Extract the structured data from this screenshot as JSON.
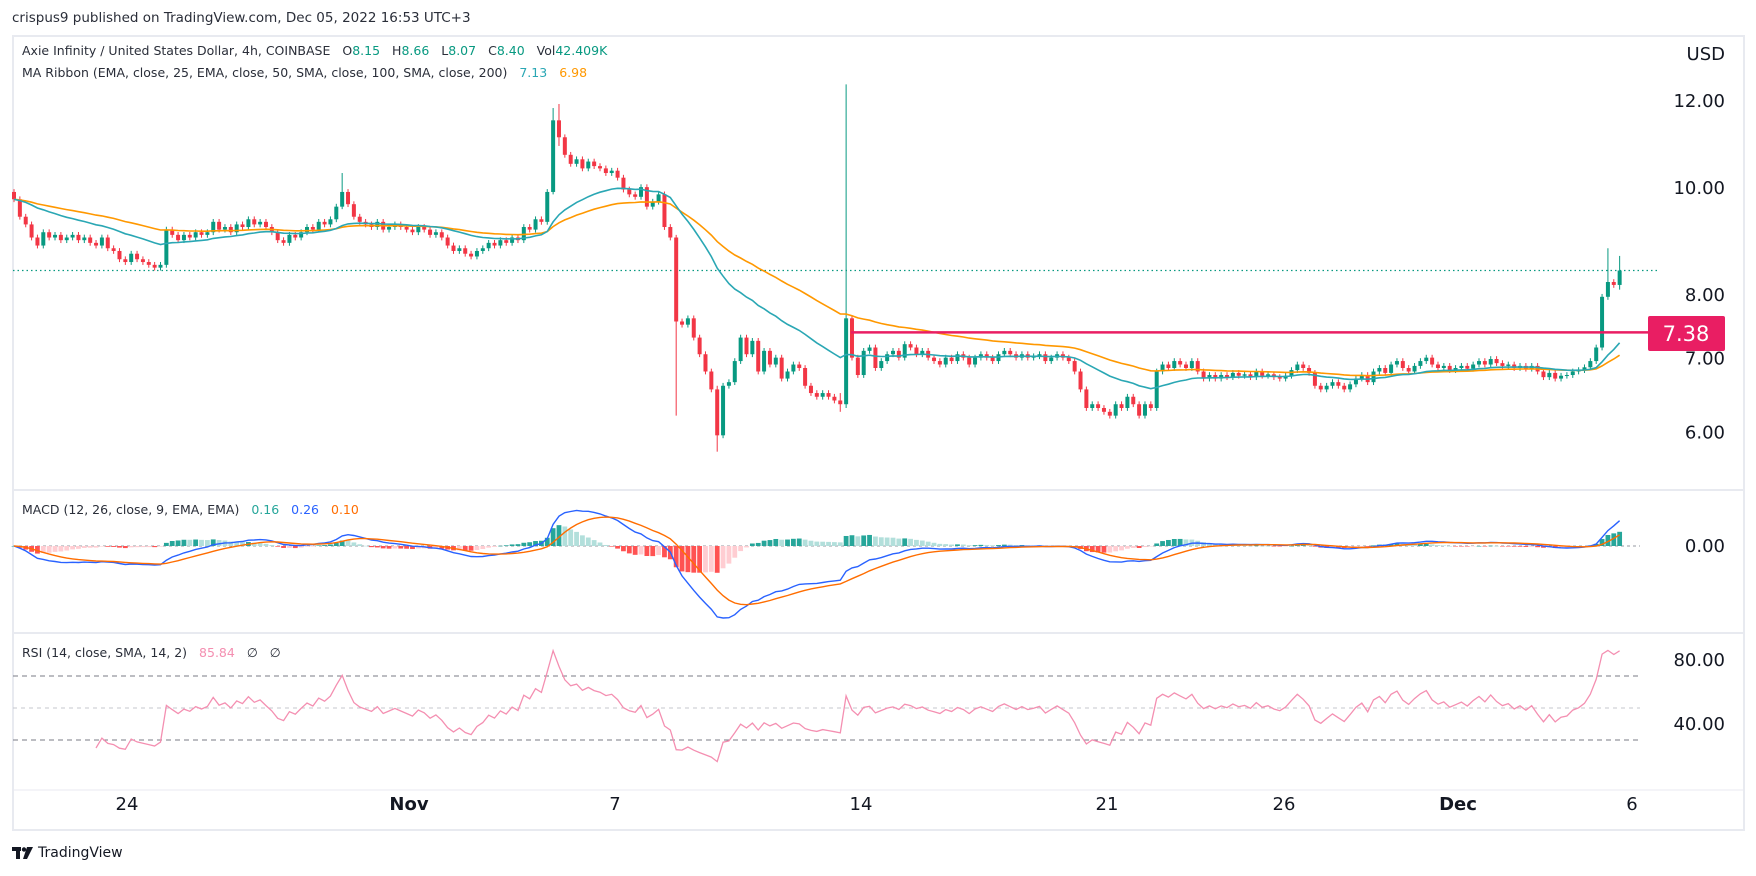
{
  "publisher": "crispus9 published on TradingView.com, Dec 05, 2022 16:53 UTC+3",
  "symbol_legend": {
    "title": "Axie Infinity / United States Dollar, 4h, COINBASE",
    "open_label": "O",
    "open": "8.15",
    "high_label": "H",
    "high": "8.66",
    "low_label": "L",
    "low": "8.07",
    "close_label": "C",
    "close": "8.40",
    "vol_label": "Vol",
    "vol": "42.409K"
  },
  "ma_legend": {
    "title": "MA Ribbon (EMA, close, 25, EMA, close, 50, SMA, close, 100, SMA, close, 200)",
    "v1": "7.13",
    "v2": "6.98"
  },
  "macd_legend": {
    "title": "MACD (12, 26, close, 9, EMA, EMA)",
    "hist": "0.16",
    "macd": "0.26",
    "signal": "0.10"
  },
  "rsi_legend": {
    "title": "RSI (14, close, SMA, 14, 2)",
    "value": "85.84",
    "na1": "∅",
    "na2": "∅"
  },
  "footer": {
    "logo_text": "TradingView",
    "logo_icon": "tradingview-logo-icon"
  },
  "colors": {
    "up": "#089981",
    "down": "#f23645",
    "ema25": "#2aa7b4",
    "ema50": "#ff9800",
    "macd": "#2962ff",
    "signal": "#ff6d00",
    "rsi": "#f48fb1",
    "level_line": "#e91e63",
    "hist_up_strong": "#26a69a",
    "hist_up_weak": "#b2dfdb",
    "hist_down_strong": "#ff5252",
    "hist_down_weak": "#ffcdd2"
  },
  "chart_data": {
    "type": "candlestick",
    "interval": "4h",
    "scale": "log",
    "currency": "USD",
    "price_ticks": [
      "12.00",
      "10.00",
      "8.00",
      "7.00",
      "6.00"
    ],
    "time_ticks": [
      {
        "label": "24",
        "bold": false
      },
      {
        "label": "Nov",
        "bold": true
      },
      {
        "label": "7",
        "bold": false
      },
      {
        "label": "14",
        "bold": false
      },
      {
        "label": "21",
        "bold": false
      },
      {
        "label": "26",
        "bold": false
      },
      {
        "label": "Dec",
        "bold": true
      },
      {
        "label": "6",
        "bold": false
      }
    ],
    "first_open": 9.9,
    "closes": [
      9.75,
      9.4,
      9.25,
      9.0,
      8.85,
      9.1,
      9.0,
      9.05,
      8.95,
      9.0,
      9.05,
      8.95,
      9.0,
      8.9,
      8.85,
      9.0,
      8.8,
      8.75,
      8.6,
      8.55,
      8.7,
      8.6,
      8.55,
      8.5,
      8.45,
      8.5,
      9.15,
      9.05,
      8.95,
      9.05,
      9.0,
      9.1,
      9.05,
      9.1,
      9.3,
      9.15,
      9.2,
      9.1,
      9.25,
      9.2,
      9.35,
      9.25,
      9.3,
      9.2,
      9.1,
      8.95,
      8.9,
      9.05,
      9.0,
      9.1,
      9.2,
      9.15,
      9.3,
      9.25,
      9.35,
      9.6,
      9.9,
      9.65,
      9.4,
      9.3,
      9.25,
      9.2,
      9.3,
      9.15,
      9.2,
      9.25,
      9.2,
      9.15,
      9.1,
      9.2,
      9.15,
      9.05,
      9.1,
      9.0,
      8.85,
      8.75,
      8.8,
      8.7,
      8.65,
      8.75,
      8.8,
      8.9,
      8.85,
      8.95,
      8.9,
      9.0,
      8.95,
      9.2,
      9.15,
      9.35,
      9.3,
      9.9,
      11.5,
      11.1,
      10.7,
      10.5,
      10.6,
      10.4,
      10.55,
      10.45,
      10.4,
      10.3,
      10.35,
      10.2,
      9.95,
      9.85,
      9.8,
      10.0,
      9.6,
      9.7,
      9.85,
      9.2,
      9.0,
      7.55,
      7.5,
      7.6,
      7.3,
      7.05,
      6.8,
      6.55,
      5.95,
      6.6,
      6.65,
      6.95,
      7.3,
      7.05,
      7.25,
      6.8,
      7.1,
      6.9,
      7.0,
      6.7,
      6.8,
      6.9,
      6.85,
      6.6,
      6.5,
      6.45,
      6.5,
      6.45,
      6.4,
      6.35,
      7.6,
      7.0,
      6.75,
      7.1,
      7.15,
      6.85,
      6.95,
      7.05,
      7.1,
      7.0,
      7.2,
      7.15,
      7.05,
      7.1,
      7.0,
      6.95,
      6.9,
      7.0,
      6.95,
      7.05,
      7.0,
      6.9,
      7.0,
      7.05,
      7.0,
      6.95,
      7.05,
      7.1,
      7.05,
      7.0,
      7.05,
      7.0,
      7.02,
      7.05,
      6.95,
      7.0,
      7.05,
      7.0,
      6.95,
      6.8,
      6.55,
      6.3,
      6.35,
      6.3,
      6.25,
      6.2,
      6.35,
      6.3,
      6.45,
      6.35,
      6.2,
      6.35,
      6.3,
      6.8,
      6.9,
      6.85,
      6.95,
      6.9,
      6.85,
      6.95,
      6.8,
      6.7,
      6.75,
      6.7,
      6.75,
      6.72,
      6.78,
      6.74,
      6.76,
      6.72,
      6.8,
      6.74,
      6.76,
      6.72,
      6.7,
      6.74,
      6.82,
      6.9,
      6.85,
      6.78,
      6.6,
      6.55,
      6.6,
      6.65,
      6.6,
      6.55,
      6.62,
      6.7,
      6.75,
      6.65,
      6.8,
      6.85,
      6.78,
      6.9,
      6.95,
      6.85,
      6.8,
      6.88,
      6.95,
      7.0,
      6.9,
      6.85,
      6.88,
      6.82,
      6.85,
      6.88,
      6.84,
      6.9,
      6.95,
      6.9,
      6.98,
      6.92,
      6.88,
      6.9,
      6.85,
      6.88,
      6.84,
      6.88,
      6.8,
      6.72,
      6.78,
      6.7,
      6.74,
      6.75,
      6.8,
      6.82,
      6.86,
      6.95,
      7.15,
      7.95,
      8.2,
      8.15,
      8.4
    ],
    "wicks": {
      "56": [
        10.3,
        9.55
      ],
      "92": [
        11.8,
        9.85
      ],
      "93": [
        11.9,
        10.9
      ],
      "113": [
        9.05,
        6.2
      ],
      "120": [
        6.6,
        5.75
      ],
      "141": [
        6.5,
        6.25
      ],
      "142": [
        12.4,
        6.3
      ],
      "272": [
        8.8,
        7.9
      ],
      "274": [
        8.66,
        8.07
      ]
    },
    "level_line": {
      "value": 7.38,
      "label": "7.38"
    },
    "last_price": 8.4,
    "ma_ribbon": {
      "periods": [
        25,
        50
      ],
      "type": "EMA"
    },
    "macd": {
      "fast": 12,
      "slow": 26,
      "signal": 9,
      "zero_label": "0.00"
    },
    "rsi": {
      "period": 14,
      "levels": [
        70,
        50,
        30
      ],
      "tick_labels": [
        "80.00",
        "40.00"
      ]
    }
  }
}
